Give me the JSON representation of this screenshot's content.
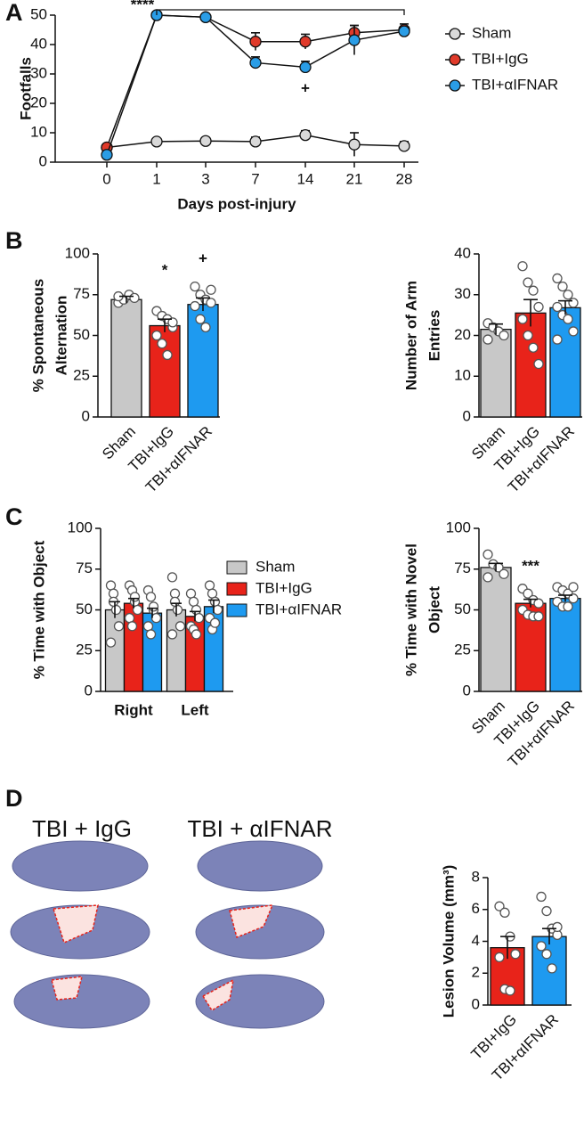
{
  "panel_labels": [
    "A",
    "B",
    "C",
    "D"
  ],
  "image_titles": [
    "TBI + IgG",
    "TBI + αIFNAR"
  ],
  "chart_data": [
    {
      "type": "line",
      "ylabel": "Footfalls",
      "xlabel": "Days post-injury",
      "categories": [
        "0",
        "1",
        "3",
        "7",
        "14",
        "21",
        "28"
      ],
      "ylim": [
        0,
        50
      ],
      "yticks": [
        0,
        10,
        20,
        30,
        40,
        50
      ],
      "series": [
        {
          "name": "Sham",
          "color": "#d9d9d9",
          "values": [
            5,
            7,
            7.2,
            7,
            9.2,
            6,
            5.5
          ],
          "errors": [
            1,
            1,
            0.8,
            1.5,
            1.5,
            4,
            1.5
          ]
        },
        {
          "name": "TBI+IgG",
          "color": "#e03a2a",
          "values": [
            5,
            50,
            49.3,
            41,
            41,
            44,
            45
          ],
          "errors": [
            0,
            0,
            0.5,
            3,
            2.5,
            2.5,
            2
          ]
        },
        {
          "name": "TBI+αIFNAR",
          "color": "#2a9de6",
          "values": [
            2.5,
            50,
            49.3,
            33.8,
            32.3,
            41.5,
            44.5
          ],
          "errors": [
            0,
            0,
            0.5,
            2,
            2,
            5,
            1.5
          ]
        }
      ],
      "annotations": [
        "****",
        "+"
      ]
    },
    {
      "type": "bar",
      "ylabel": [
        "% Spontaneous",
        "Alternation"
      ],
      "categories": [
        "Sham",
        "TBI+IgG",
        "TBI+αIFNAR"
      ],
      "values": [
        72,
        56,
        69
      ],
      "errors": [
        2,
        4,
        4
      ],
      "colors": [
        "#c8c8c8",
        "#e8231a",
        "#1e9af0"
      ],
      "points": [
        [
          70,
          72,
          75,
          73,
          74
        ],
        [
          65,
          62,
          60,
          55,
          50,
          45,
          38,
          58
        ],
        [
          80,
          75,
          72,
          70,
          68,
          60,
          55,
          78
        ]
      ],
      "ylim": [
        0,
        100
      ],
      "yticks": [
        0,
        25,
        50,
        75,
        100
      ],
      "annotations": [
        "*",
        "+"
      ]
    },
    {
      "type": "bar",
      "ylabel": [
        "Number of Arm",
        "Entries"
      ],
      "categories": [
        "Sham",
        "TBI+IgG",
        "TBI+αIFNAR"
      ],
      "values": [
        21.5,
        25.5,
        26.8
      ],
      "errors": [
        1.3,
        3.3,
        1.7
      ],
      "colors": [
        "#c8c8c8",
        "#e8231a",
        "#1e9af0"
      ],
      "points": [
        [
          23,
          22,
          21,
          20,
          19
        ],
        [
          37,
          33,
          31,
          27,
          24,
          20,
          17,
          13
        ],
        [
          34,
          32,
          30,
          28,
          27,
          25,
          24,
          21,
          19
        ]
      ],
      "ylim": [
        0,
        40
      ],
      "yticks": [
        0,
        10,
        20,
        30,
        40
      ]
    },
    {
      "type": "grouped_bar",
      "ylabel": [
        "% Time with Object"
      ],
      "categories": [
        "Right",
        "Left"
      ],
      "series": [
        {
          "name": "Sham",
          "color": "#c8c8c8",
          "values": [
            50,
            50
          ],
          "errors": [
            5,
            4
          ],
          "points": [
            [
              65,
              60,
              50,
              40,
              30,
              55
            ],
            [
              70,
              60,
              50,
              40,
              35,
              55
            ]
          ]
        },
        {
          "name": "TBI+IgG",
          "color": "#e8231a",
          "values": [
            54,
            46
          ],
          "errors": [
            3,
            3
          ],
          "points": [
            [
              65,
              62,
              55,
              50,
              45,
              40,
              58
            ],
            [
              60,
              55,
              50,
              45,
              40,
              38,
              35
            ]
          ]
        },
        {
          "name": "TBI+αIFNAR",
          "color": "#1e9af0",
          "values": [
            48,
            52
          ],
          "errors": [
            3,
            4
          ],
          "points": [
            [
              62,
              58,
              50,
              45,
              40,
              35,
              52
            ],
            [
              65,
              60,
              55,
              50,
              45,
              38,
              42
            ]
          ]
        }
      ],
      "ylim": [
        0,
        100
      ],
      "yticks": [
        0,
        25,
        50,
        75,
        100
      ]
    },
    {
      "type": "bar",
      "ylabel": [
        "% Time with Novel",
        "Object"
      ],
      "categories": [
        "Sham",
        "TBI+IgG",
        "TBI+αIFNAR"
      ],
      "values": [
        76,
        54,
        57
      ],
      "errors": [
        2.5,
        2.5,
        2
      ],
      "colors": [
        "#c8c8c8",
        "#e8231a",
        "#1e9af0"
      ],
      "points": [
        [
          84,
          78,
          76,
          72,
          70
        ],
        [
          63,
          60,
          56,
          54,
          50,
          47,
          46,
          46
        ],
        [
          64,
          62,
          60,
          57,
          55,
          52,
          52,
          64
        ]
      ],
      "ylim": [
        0,
        100
      ],
      "yticks": [
        0,
        25,
        50,
        75,
        100
      ],
      "annotations": [
        "***"
      ]
    },
    {
      "type": "bar",
      "ylabel": [
        "Lesion Volume (mm³)"
      ],
      "categories": [
        "TBI+IgG",
        "TBI+αIFNAR"
      ],
      "values": [
        3.6,
        4.3
      ],
      "errors": [
        0.7,
        0.5
      ],
      "colors": [
        "#e8231a",
        "#1e9af0"
      ],
      "points": [
        [
          6.2,
          5.8,
          4.3,
          3.2,
          3.0,
          1.0,
          0.9
        ],
        [
          6.8,
          5.9,
          4.8,
          4.4,
          3.7,
          3.2,
          2.3,
          4.9
        ]
      ],
      "ylim": [
        0,
        8
      ],
      "yticks": [
        0,
        2,
        4,
        6,
        8
      ]
    }
  ]
}
